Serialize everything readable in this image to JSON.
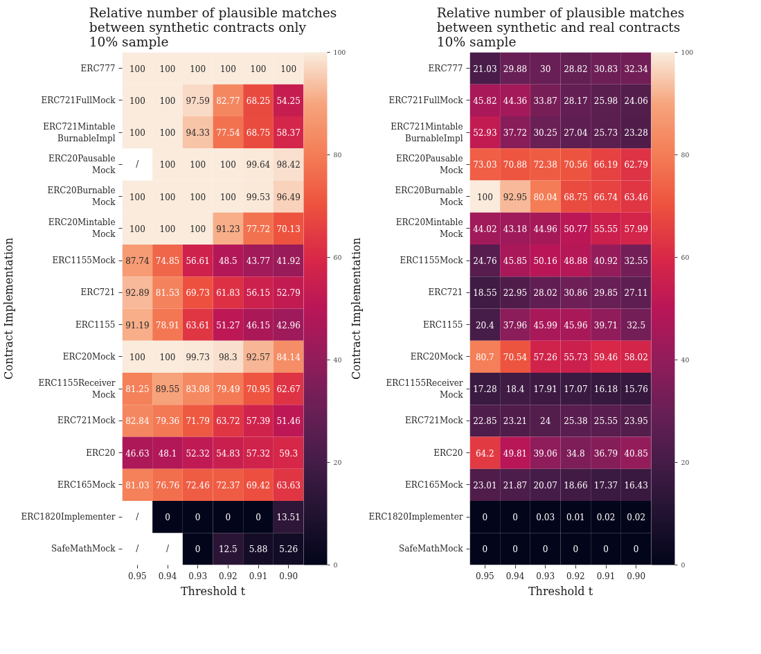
{
  "chart_data": [
    {
      "type": "heatmap",
      "title": "Relative number of plausible matches\nbetween synthetic contracts only\n10% sample",
      "xlabel": "Threshold t",
      "ylabel": "Contract Implementation",
      "categories": [
        "0.95",
        "0.94",
        "0.93",
        "0.92",
        "0.91",
        "0.90"
      ],
      "y_categories": [
        "ERC777",
        "ERC721FullMock",
        "ERC721Mintable BurnableImpl",
        "ERC20Pausable Mock",
        "ERC20Burnable Mock",
        "ERC20Mintable Mock",
        "ERC1155Mock",
        "ERC721",
        "ERC1155",
        "ERC20Mock",
        "ERC1155Receiver Mock",
        "ERC721Mock",
        "ERC20",
        "ERC165Mock",
        "ERC1820Implementer",
        "SafeMathMock"
      ],
      "cells": [
        [
          100,
          100,
          100,
          100,
          100,
          100
        ],
        [
          100,
          100,
          97.59,
          82.77,
          68.25,
          54.25
        ],
        [
          100,
          100,
          94.33,
          77.54,
          68.75,
          58.37
        ],
        [
          null,
          100,
          100,
          100,
          99.64,
          98.42
        ],
        [
          100,
          100,
          100,
          100,
          99.53,
          96.49
        ],
        [
          100,
          100,
          100,
          91.23,
          77.72,
          70.13
        ],
        [
          87.74,
          74.85,
          56.61,
          48.5,
          43.77,
          41.92
        ],
        [
          92.89,
          81.53,
          69.73,
          61.83,
          56.15,
          52.79
        ],
        [
          91.19,
          78.91,
          63.61,
          51.27,
          46.15,
          42.96
        ],
        [
          100,
          100,
          99.73,
          98.3,
          92.57,
          84.14
        ],
        [
          81.25,
          89.55,
          83.08,
          79.49,
          70.95,
          62.67
        ],
        [
          82.84,
          79.36,
          71.79,
          63.72,
          57.39,
          51.46
        ],
        [
          46.63,
          48.1,
          52.32,
          54.83,
          57.32,
          59.3
        ],
        [
          81.03,
          76.76,
          72.46,
          72.37,
          69.42,
          63.63
        ],
        [
          null,
          0,
          0,
          0,
          0,
          13.51
        ],
        [
          null,
          null,
          0,
          12.5,
          5.88,
          5.26
        ]
      ],
      "cell_labels": [
        [
          "100",
          "100",
          "100",
          "100",
          "100",
          "100"
        ],
        [
          "100",
          "100",
          "97.59",
          "82.77",
          "68.25",
          "54.25"
        ],
        [
          "100",
          "100",
          "94.33",
          "77.54",
          "68.75",
          "58.37"
        ],
        [
          "/",
          "100",
          "100",
          "100",
          "99.64",
          "98.42"
        ],
        [
          "100",
          "100",
          "100",
          "100",
          "99.53",
          "96.49"
        ],
        [
          "100",
          "100",
          "100",
          "91.23",
          "77.72",
          "70.13"
        ],
        [
          "87.74",
          "74.85",
          "56.61",
          "48.5",
          "43.77",
          "41.92"
        ],
        [
          "92.89",
          "81.53",
          "69.73",
          "61.83",
          "56.15",
          "52.79"
        ],
        [
          "91.19",
          "78.91",
          "63.61",
          "51.27",
          "46.15",
          "42.96"
        ],
        [
          "100",
          "100",
          "99.73",
          "98.3",
          "92.57",
          "84.14"
        ],
        [
          "81.25",
          "89.55",
          "83.08",
          "79.49",
          "70.95",
          "62.67"
        ],
        [
          "82.84",
          "79.36",
          "71.79",
          "63.72",
          "57.39",
          "51.46"
        ],
        [
          "46.63",
          "48.1",
          "52.32",
          "54.83",
          "57.32",
          "59.3"
        ],
        [
          "81.03",
          "76.76",
          "72.46",
          "72.37",
          "69.42",
          "63.63"
        ],
        [
          "/",
          "0",
          "0",
          "0",
          "0",
          "13.51"
        ],
        [
          "/",
          "/",
          "0",
          "12.5",
          "5.88",
          "5.26"
        ]
      ],
      "clim": [
        0,
        100
      ],
      "cticks": [
        0,
        20,
        40,
        60,
        80,
        100
      ],
      "data_labels": true
    },
    {
      "type": "heatmap",
      "title": "Relative number of plausible matches\nbetween synthetic and real contracts\n10% sample",
      "xlabel": "Threshold t",
      "ylabel": "Contract Implementation",
      "categories": [
        "0.95",
        "0.94",
        "0.93",
        "0.92",
        "0.91",
        "0.90"
      ],
      "y_categories": [
        "ERC777",
        "ERC721FullMock",
        "ERC721Mintable BurnableImpl",
        "ERC20Pausable Mock",
        "ERC20Burnable Mock",
        "ERC20Mintable Mock",
        "ERC1155Mock",
        "ERC721",
        "ERC1155",
        "ERC20Mock",
        "ERC1155Receiver Mock",
        "ERC721Mock",
        "ERC20",
        "ERC165Mock",
        "ERC1820Implementer",
        "SafeMathMock"
      ],
      "cells": [
        [
          21.03,
          29.88,
          30,
          28.82,
          30.83,
          32.34
        ],
        [
          45.82,
          44.36,
          33.87,
          28.17,
          25.98,
          24.06
        ],
        [
          52.93,
          37.72,
          30.25,
          27.04,
          25.73,
          23.28
        ],
        [
          73.03,
          70.88,
          72.38,
          70.56,
          66.19,
          62.79
        ],
        [
          100,
          92.95,
          80.04,
          68.75,
          66.74,
          63.46
        ],
        [
          44.02,
          43.18,
          44.96,
          50.77,
          55.55,
          57.99
        ],
        [
          24.76,
          45.85,
          50.16,
          48.88,
          40.92,
          32.55
        ],
        [
          18.55,
          22.95,
          28.02,
          30.86,
          29.85,
          27.11
        ],
        [
          20.4,
          37.96,
          45.99,
          45.96,
          39.71,
          32.5
        ],
        [
          80.7,
          70.54,
          57.26,
          55.73,
          59.46,
          58.02
        ],
        [
          17.28,
          18.4,
          17.91,
          17.07,
          16.18,
          15.76
        ],
        [
          22.85,
          23.21,
          24,
          25.38,
          25.55,
          23.95
        ],
        [
          64.2,
          49.81,
          39.06,
          34.8,
          36.79,
          40.85
        ],
        [
          23.01,
          21.87,
          20.07,
          18.66,
          17.37,
          16.43
        ],
        [
          0,
          0,
          0.03,
          0.01,
          0.02,
          0.02
        ],
        [
          0,
          0,
          0,
          0,
          0,
          0
        ]
      ],
      "clim": [
        0,
        100
      ],
      "cticks": [
        0,
        20,
        40,
        60,
        80,
        100
      ],
      "data_labels": true
    }
  ]
}
